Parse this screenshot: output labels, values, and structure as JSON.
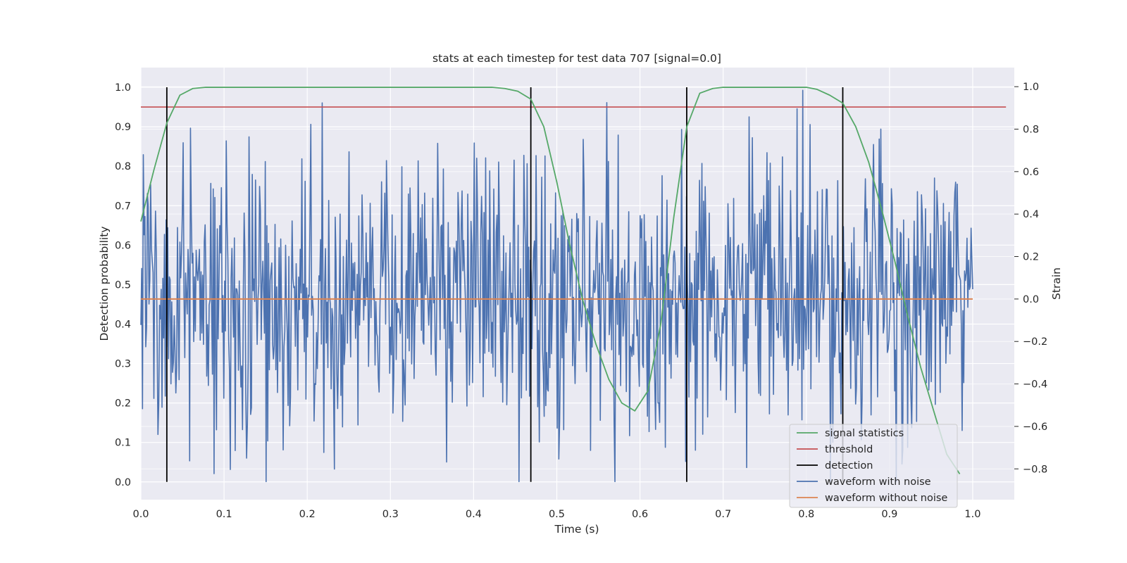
{
  "chart_data": {
    "type": "line",
    "title": "stats at each timestep for test data 707 [signal=0.0]",
    "xlabel": "Time (s)",
    "ylabel": "Detection probability",
    "y2label": "Strain",
    "xlim": [
      0.0,
      1.05
    ],
    "ylim": [
      -0.045,
      1.05
    ],
    "y2lim": [
      -0.945,
      1.09
    ],
    "x_ticks": [
      "0.0",
      "0.1",
      "0.2",
      "0.3",
      "0.4",
      "0.5",
      "0.6",
      "0.7",
      "0.8",
      "0.9",
      "1.0"
    ],
    "y_ticks": [
      "0.0",
      "0.1",
      "0.2",
      "0.3",
      "0.4",
      "0.5",
      "0.6",
      "0.7",
      "0.8",
      "0.9",
      "1.0"
    ],
    "y2_ticks": [
      "−0.8",
      "−0.6",
      "−0.4",
      "−0.2",
      "0.0",
      "0.2",
      "0.4",
      "0.6",
      "0.8",
      "1.0"
    ],
    "grid": true,
    "legend_position": "lower right",
    "colors": {
      "signal_statistics": "#55a868",
      "threshold": "#c44e52",
      "detection": "#000000",
      "waveform_with_noise": "#4c72b0",
      "waveform_without_noise": "#dd8452",
      "plot_background": "#eaeaf2",
      "grid": "#ffffff"
    },
    "series": [
      {
        "name": "signal statistics",
        "axis": "left",
        "x": [
          0.0,
          0.0156,
          0.0313,
          0.0469,
          0.0625,
          0.0781,
          0.1,
          0.2,
          0.3,
          0.4,
          0.4219,
          0.4375,
          0.4531,
          0.4688,
          0.4844,
          0.5,
          0.5156,
          0.5313,
          0.5469,
          0.5625,
          0.5781,
          0.5938,
          0.6094,
          0.625,
          0.6406,
          0.6563,
          0.6719,
          0.6875,
          0.7,
          0.75,
          0.8,
          0.8125,
          0.8281,
          0.8438,
          0.8594,
          0.875,
          0.8906,
          0.9063,
          0.9219,
          0.9375,
          0.9531,
          0.9688,
          0.9844
        ],
        "values": [
          0.66,
          0.79,
          0.91,
          0.98,
          0.997,
          1.0,
          1.0,
          1.0,
          1.0,
          1.0,
          1.0,
          0.997,
          0.99,
          0.97,
          0.9,
          0.76,
          0.6,
          0.46,
          0.35,
          0.26,
          0.2,
          0.18,
          0.23,
          0.4,
          0.67,
          0.9,
          0.985,
          0.997,
          1.0,
          1.0,
          1.0,
          0.995,
          0.98,
          0.96,
          0.9,
          0.81,
          0.69,
          0.56,
          0.42,
          0.29,
          0.18,
          0.07,
          0.02
        ]
      },
      {
        "name": "threshold",
        "axis": "left",
        "x": [
          0.0,
          1.04
        ],
        "values": [
          0.95,
          0.95
        ]
      },
      {
        "name": "detection",
        "axis": "left",
        "x": [
          0.0312,
          0.4688,
          0.6562,
          0.8438
        ],
        "values": [
          1.0,
          1.0,
          1.0,
          1.0
        ]
      },
      {
        "name": "waveform with noise",
        "axis": "right",
        "noise_amplitude": 0.32,
        "x_range": [
          0.0,
          1.0
        ],
        "n_points": 1024
      },
      {
        "name": "waveform without noise",
        "axis": "right",
        "x": [
          0.0,
          1.0
        ],
        "values": [
          0.0,
          0.0
        ]
      }
    ]
  }
}
